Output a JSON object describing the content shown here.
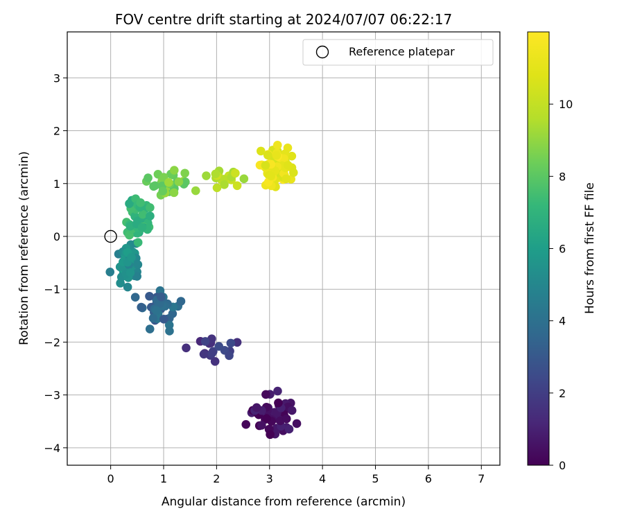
{
  "chart_data": {
    "type": "scatter",
    "title": "FOV centre drift starting at 2024/07/07 06:22:17",
    "xlabel": "Angular distance from reference (arcmin)",
    "ylabel": "Rotation from reference (arcmin)",
    "xlim": [
      -0.82,
      7.35
    ],
    "ylim": [
      -4.33,
      3.87
    ],
    "xticks": [
      "0",
      "1",
      "2",
      "3",
      "4",
      "5",
      "6",
      "7"
    ],
    "yticks": [
      "−4",
      "−3",
      "−2",
      "−1",
      "0",
      "1",
      "2",
      "3"
    ],
    "grid": true,
    "legend": {
      "placement": "top-right",
      "entries": [
        "Reference platepar"
      ]
    },
    "reference_point": {
      "x": 0,
      "y": 0
    },
    "colorbar": {
      "label": "Hours from first FF file",
      "range": [
        0,
        12
      ],
      "ticks": [
        "0",
        "2",
        "4",
        "6",
        "8",
        "10"
      ],
      "colormap": "viridis"
    },
    "clusters": [
      {
        "hours": 0.4,
        "cx": 3.05,
        "cy": -3.35,
        "sx": 0.32,
        "sy": 0.28,
        "n": 55
      },
      {
        "hours": 1.8,
        "cx": 1.9,
        "cy": -2.15,
        "sx": 0.35,
        "sy": 0.18,
        "n": 18
      },
      {
        "hours": 3.6,
        "cx": 0.95,
        "cy": -1.35,
        "sx": 0.22,
        "sy": 0.28,
        "n": 45
      },
      {
        "hours": 5.3,
        "cx": 0.35,
        "cy": -0.55,
        "sx": 0.18,
        "sy": 0.3,
        "n": 45
      },
      {
        "hours": 7.0,
        "cx": 0.55,
        "cy": 0.3,
        "sx": 0.18,
        "sy": 0.28,
        "n": 45
      },
      {
        "hours": 8.5,
        "cx": 1.2,
        "cy": 0.95,
        "sx": 0.35,
        "sy": 0.18,
        "n": 30
      },
      {
        "hours": 9.6,
        "cx": 2.15,
        "cy": 1.1,
        "sx": 0.28,
        "sy": 0.12,
        "n": 18
      },
      {
        "hours": 11.2,
        "cx": 3.1,
        "cy": 1.3,
        "sx": 0.22,
        "sy": 0.25,
        "n": 85
      }
    ]
  },
  "colors": {
    "grid": "#b0b0b0",
    "axis": "#000000"
  }
}
